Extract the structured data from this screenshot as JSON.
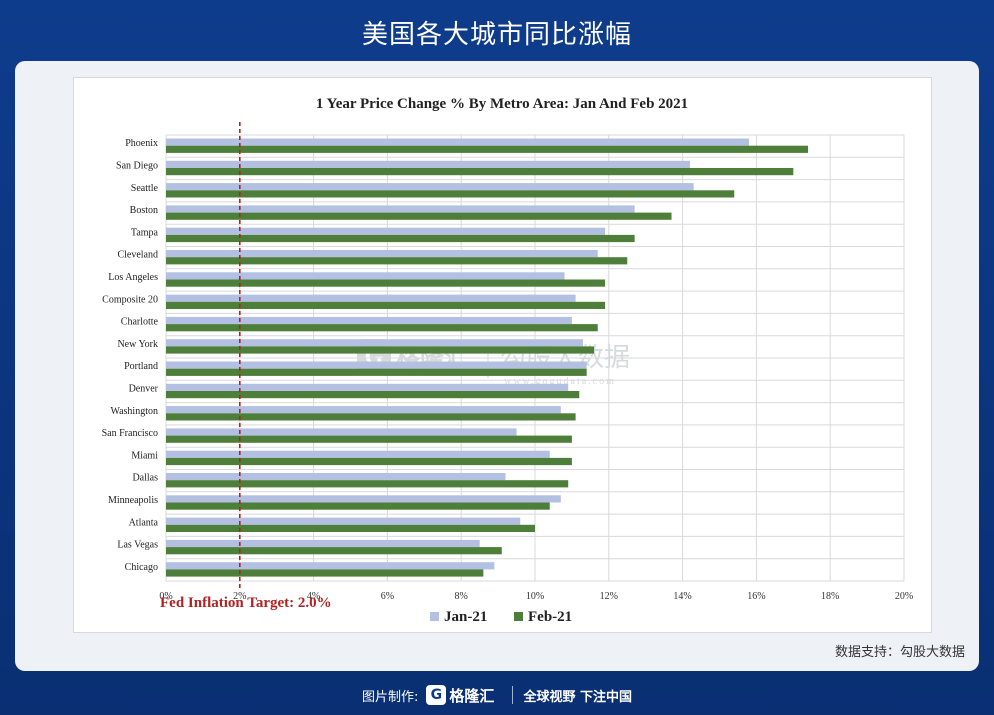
{
  "header": {
    "title": "美国各大城市同比涨幅"
  },
  "source": "数据支持：勾股大数据",
  "watermark": {
    "brand": "格隆汇",
    "brand2": "勾股大数据",
    "url": "www.gogudata.com"
  },
  "footer": {
    "made_by": "图片制作:",
    "logo_letter": "G",
    "logo_text": "格隆汇",
    "slogan": "全球视野 下注中国"
  },
  "colors": {
    "jan": "#b4c0e2",
    "feb": "#4e7f3a",
    "target": "#b22222"
  },
  "chart_data": {
    "type": "bar",
    "orientation": "horizontal",
    "title": "1 Year Price Change % By Metro Area: Jan And Feb 2021",
    "categories": [
      "Phoenix",
      "San Diego",
      "Seattle",
      "Boston",
      "Tampa",
      "Cleveland",
      "Los Angeles",
      "Composite 20",
      "Charlotte",
      "New York",
      "Portland",
      "Denver",
      "Washington",
      "San Francisco",
      "Miami",
      "Dallas",
      "Minneapolis",
      "Atlanta",
      "Las Vegas",
      "Chicago"
    ],
    "series": [
      {
        "name": "Jan-21",
        "values": [
          15.8,
          14.2,
          14.3,
          12.7,
          11.9,
          11.7,
          10.8,
          11.1,
          11.0,
          11.3,
          11.4,
          10.9,
          10.7,
          9.5,
          10.4,
          9.2,
          10.7,
          9.6,
          8.5,
          8.9
        ]
      },
      {
        "name": "Feb-21",
        "values": [
          17.4,
          17.0,
          15.4,
          13.7,
          12.7,
          12.5,
          11.9,
          11.9,
          11.7,
          11.6,
          11.4,
          11.2,
          11.1,
          11.0,
          11.0,
          10.9,
          10.4,
          10.0,
          9.1,
          8.6
        ]
      }
    ],
    "xlim": [
      0,
      20
    ],
    "xticks": [
      "0%",
      "2%",
      "4%",
      "6%",
      "8%",
      "10%",
      "12%",
      "14%",
      "16%",
      "18%",
      "20%"
    ],
    "grid": true,
    "reference_line": {
      "value": 2.0,
      "label": "Fed Inflation Target: 2.0%"
    },
    "legend": "bottom-center"
  }
}
